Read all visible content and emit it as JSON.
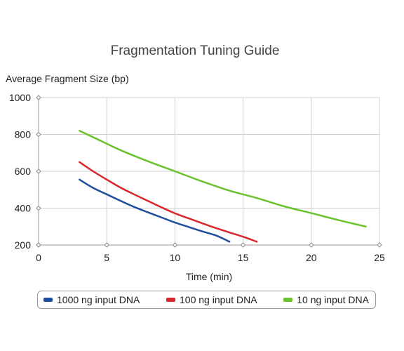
{
  "chart_data": {
    "type": "line",
    "title": "Fragmentation Tuning Guide",
    "xlabel": "Time (min)",
    "ylabel": "Average Fragment Size (bp)",
    "xlim": [
      0,
      25
    ],
    "ylim": [
      200,
      1000
    ],
    "xticks": [
      0,
      5,
      10,
      15,
      20,
      25
    ],
    "yticks": [
      200,
      400,
      600,
      800,
      1000
    ],
    "grid": true,
    "legend_position": "bottom",
    "series": [
      {
        "name": "1000 ng input DNA",
        "color": "#1f4e9c",
        "x": [
          3,
          4,
          5,
          6,
          7,
          8,
          9,
          10,
          11,
          12,
          13,
          14
        ],
        "y": [
          555,
          510,
          475,
          440,
          407,
          378,
          350,
          322,
          298,
          274,
          252,
          218
        ]
      },
      {
        "name": "100 ng input DNA",
        "color": "#d9272e",
        "x": [
          3,
          4,
          5,
          6,
          7,
          8,
          9,
          10,
          11,
          12,
          13,
          14,
          15,
          16
        ],
        "y": [
          650,
          600,
          555,
          512,
          475,
          440,
          405,
          372,
          345,
          318,
          292,
          268,
          245,
          218
        ]
      },
      {
        "name": "10 ng input DNA",
        "color": "#6cc12e",
        "x": [
          3,
          4,
          6,
          8,
          10,
          12,
          14,
          16,
          18,
          20,
          22,
          24
        ],
        "y": [
          820,
          785,
          715,
          655,
          600,
          545,
          495,
          455,
          410,
          373,
          335,
          300
        ]
      }
    ]
  }
}
